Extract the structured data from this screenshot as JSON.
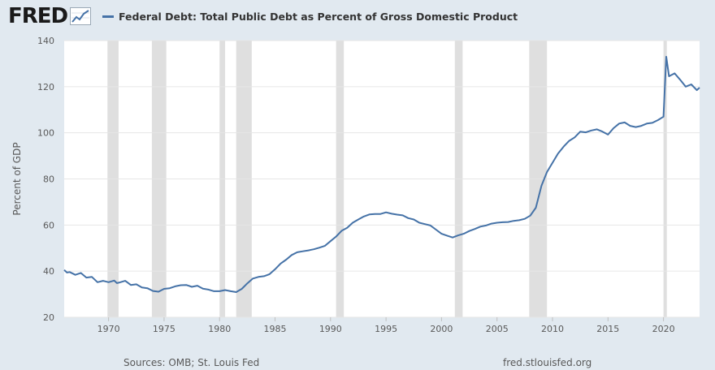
{
  "logo": {
    "text": "FRED",
    "icon": "trend-line-icon"
  },
  "legend": {
    "label": "Federal Debt: Total Public Debt as Percent of Gross Domestic Product",
    "color": "#4572a7"
  },
  "footer": {
    "sources": "Sources: OMB; St. Louis Fed",
    "site": "fred.stlouisfed.org"
  },
  "colors": {
    "background": "#e1e9f0",
    "plot": "#ffffff",
    "recession": "#dfdfdf",
    "line": "#4572a7",
    "grid": "#e6e6e6"
  },
  "chart_data": {
    "type": "line",
    "title": "Federal Debt: Total Public Debt as Percent of Gross Domestic Product",
    "xlabel": "",
    "ylabel": "Percent of GDP",
    "xlim": [
      1966.0,
      2023.25
    ],
    "ylim": [
      20,
      140
    ],
    "y_ticks": [
      20,
      40,
      60,
      80,
      100,
      120,
      140
    ],
    "x_ticks": [
      1970,
      1975,
      1980,
      1985,
      1990,
      1995,
      2000,
      2005,
      2010,
      2015,
      2020
    ],
    "grid": "horizontal",
    "recessions": [
      [
        1969.9,
        1970.9
      ],
      [
        1973.9,
        1975.2
      ],
      [
        1980.0,
        1980.5
      ],
      [
        1981.5,
        1982.9
      ],
      [
        1990.5,
        1991.2
      ],
      [
        2001.2,
        2001.9
      ],
      [
        2007.9,
        2009.5
      ],
      [
        2020.0,
        2020.3
      ]
    ],
    "series": [
      {
        "name": "Federal Debt: Total Public Debt as Percent of Gross Domestic Product",
        "x": [
          1966.0,
          1966.25,
          1966.5,
          1967.0,
          1967.5,
          1968.0,
          1968.5,
          1969.0,
          1969.5,
          1970.0,
          1970.5,
          1970.75,
          1971.0,
          1971.5,
          1972.0,
          1972.5,
          1973.0,
          1973.5,
          1974.0,
          1974.5,
          1975.0,
          1975.5,
          1976.0,
          1976.5,
          1977.0,
          1977.5,
          1978.0,
          1978.5,
          1979.0,
          1979.5,
          1980.0,
          1980.5,
          1981.0,
          1981.5,
          1982.0,
          1982.5,
          1983.0,
          1983.5,
          1984.0,
          1984.5,
          1985.0,
          1985.5,
          1986.0,
          1986.5,
          1987.0,
          1987.5,
          1988.0,
          1988.5,
          1989.0,
          1989.5,
          1990.0,
          1990.5,
          1991.0,
          1991.5,
          1992.0,
          1992.5,
          1993.0,
          1993.5,
          1994.0,
          1994.5,
          1995.0,
          1995.5,
          1996.0,
          1996.5,
          1997.0,
          1997.5,
          1998.0,
          1998.5,
          1999.0,
          1999.5,
          2000.0,
          2000.5,
          2001.0,
          2001.5,
          2002.0,
          2002.5,
          2003.0,
          2003.5,
          2004.0,
          2004.5,
          2005.0,
          2005.5,
          2006.0,
          2006.5,
          2007.0,
          2007.5,
          2008.0,
          2008.5,
          2009.0,
          2009.5,
          2010.0,
          2010.5,
          2011.0,
          2011.5,
          2012.0,
          2012.5,
          2013.0,
          2013.5,
          2014.0,
          2014.5,
          2015.0,
          2015.5,
          2016.0,
          2016.5,
          2017.0,
          2017.5,
          2018.0,
          2018.5,
          2019.0,
          2019.5,
          2020.0,
          2020.25,
          2020.5,
          2021.0,
          2021.5,
          2022.0,
          2022.5,
          2023.0,
          2023.25
        ],
        "values": [
          40.5,
          39.4,
          39.6,
          38.4,
          39.2,
          37.2,
          37.5,
          35.2,
          35.8,
          35.2,
          35.9,
          34.8,
          35.1,
          35.8,
          34.0,
          34.3,
          32.9,
          32.6,
          31.4,
          31.1,
          32.3,
          32.6,
          33.4,
          33.9,
          34.0,
          33.2,
          33.7,
          32.4,
          32.0,
          31.3,
          31.3,
          31.8,
          31.3,
          30.9,
          32.3,
          34.7,
          36.8,
          37.5,
          37.8,
          38.7,
          40.8,
          43.3,
          45.0,
          47.0,
          48.2,
          48.6,
          49.0,
          49.5,
          50.2,
          51.0,
          53.0,
          55.0,
          57.5,
          58.8,
          61.0,
          62.4,
          63.7,
          64.6,
          64.8,
          64.8,
          65.5,
          64.9,
          64.5,
          64.2,
          63.0,
          62.4,
          61.0,
          60.4,
          59.8,
          58.0,
          56.2,
          55.4,
          54.6,
          55.5,
          56.2,
          57.4,
          58.3,
          59.3,
          59.8,
          60.6,
          61.0,
          61.2,
          61.3,
          61.8,
          62.1,
          62.7,
          64.1,
          67.5,
          77.0,
          83.0,
          87.0,
          91.0,
          94.0,
          96.5,
          98.0,
          100.5,
          100.2,
          101.0,
          101.5,
          100.5,
          99.2,
          102.0,
          104.0,
          104.5,
          103.0,
          102.5,
          103.0,
          104.0,
          104.3,
          105.5,
          107.0,
          133.0,
          124.5,
          125.8,
          123.0,
          120.0,
          121.0,
          118.5,
          119.6
        ]
      }
    ]
  }
}
